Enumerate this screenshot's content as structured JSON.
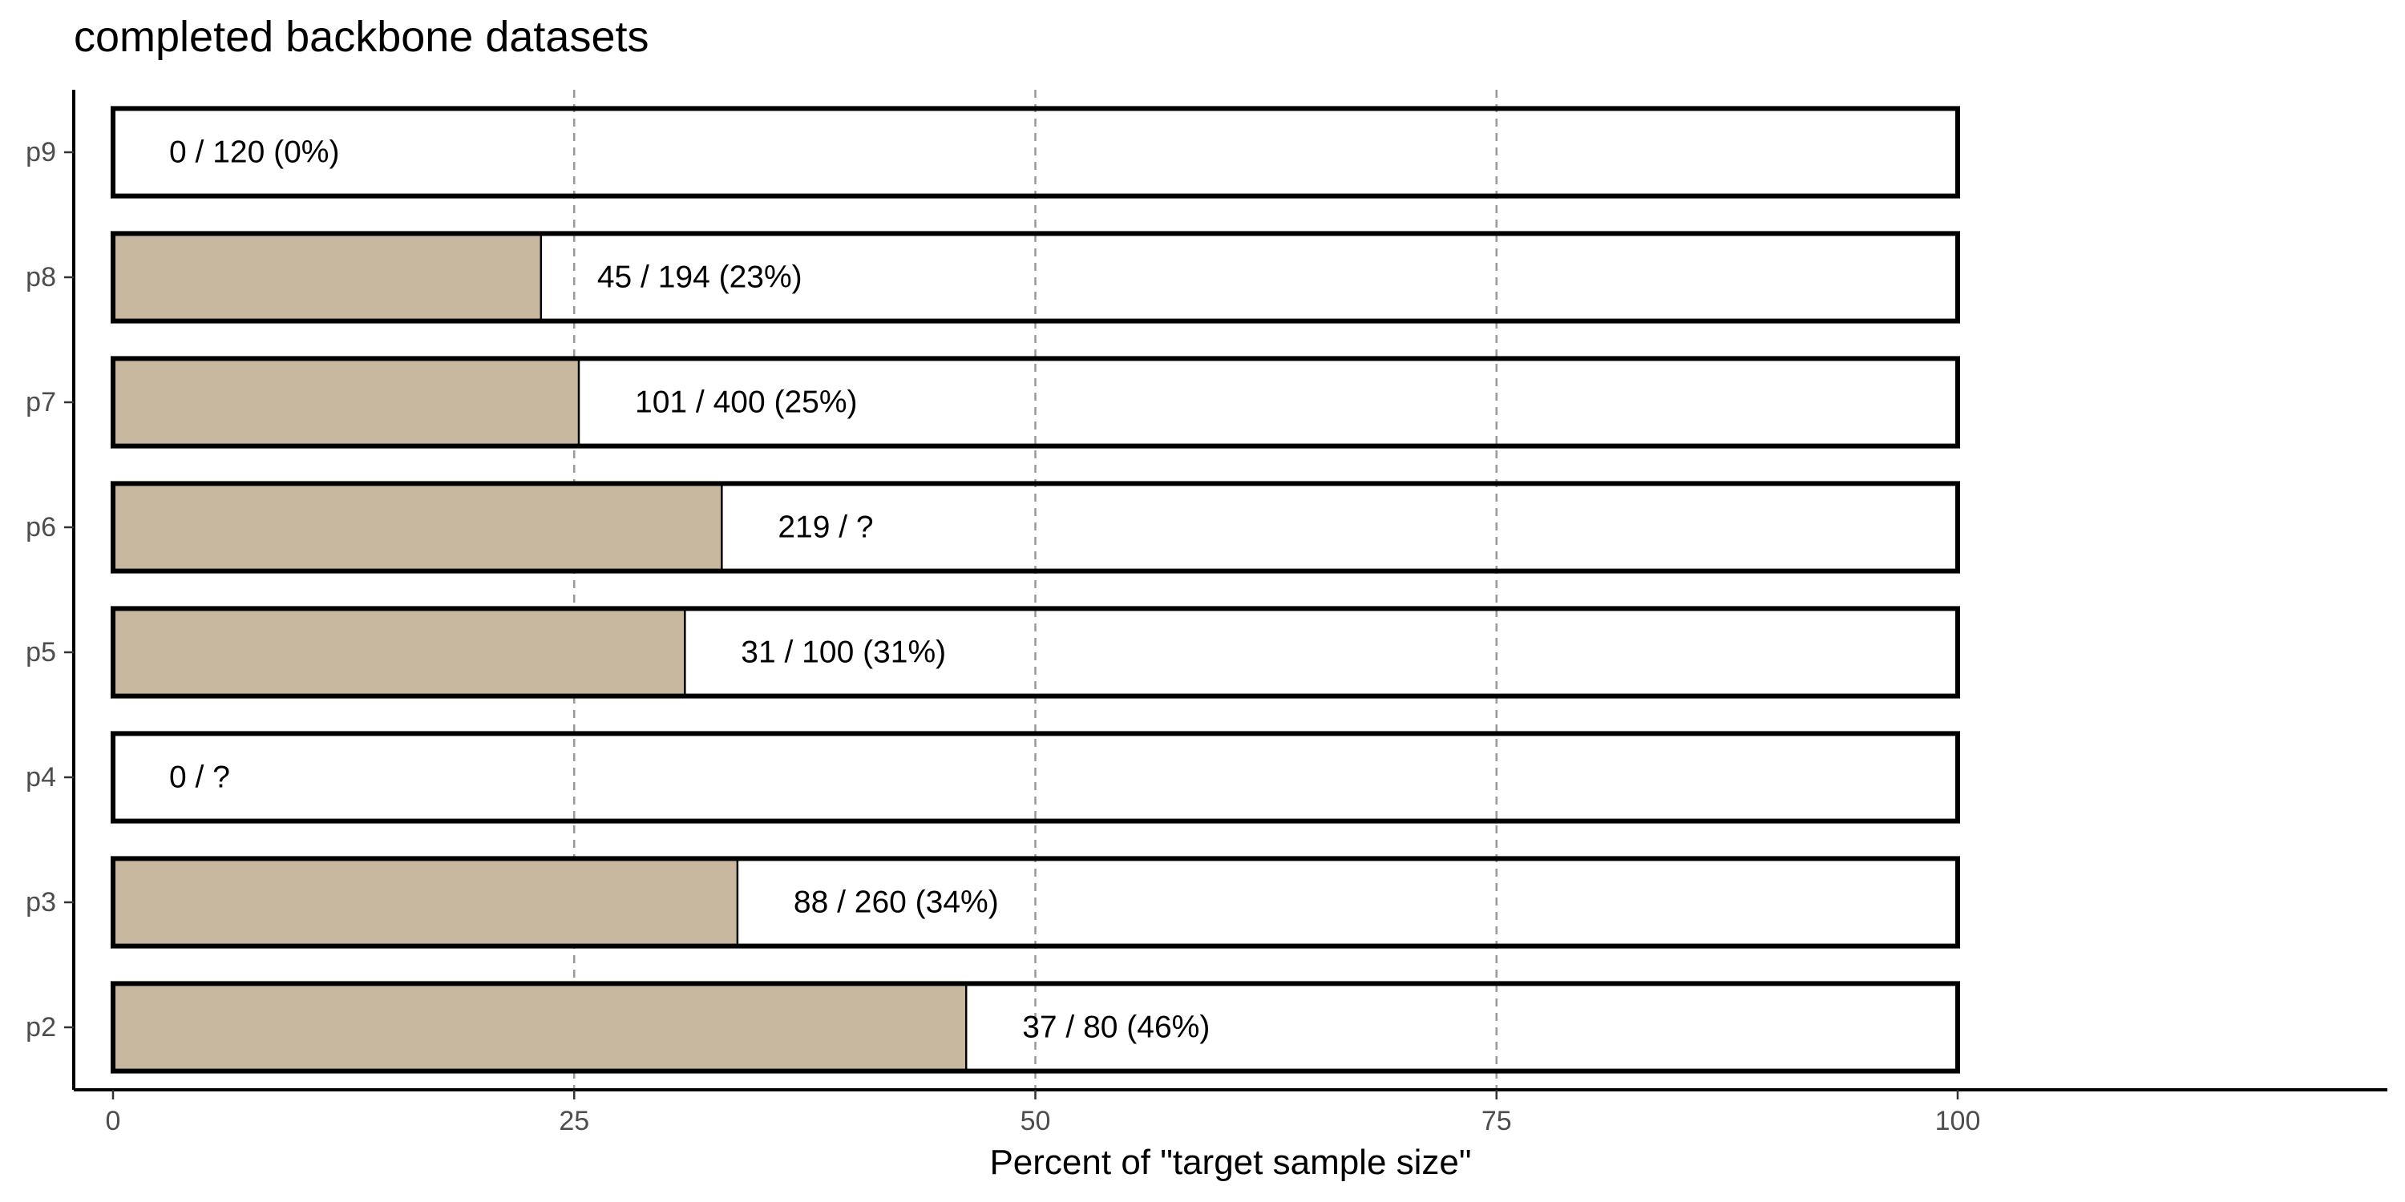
{
  "chart_data": {
    "type": "bar",
    "orientation": "horizontal",
    "title": "completed backbone datasets",
    "xlabel": "Percent of \"target sample size\"",
    "ylabel": "",
    "xlim": [
      0,
      123
    ],
    "x_ticks": [
      0,
      25,
      50,
      75,
      100
    ],
    "x_tick_labels": [
      "0",
      "25",
      "50",
      "75",
      "100"
    ],
    "categories": [
      "p9",
      "p8",
      "p7",
      "p6",
      "p5",
      "p4",
      "p3",
      "p2"
    ],
    "values": [
      0,
      23.2,
      25.25,
      33,
      31,
      0,
      33.85,
      46.25
    ],
    "target_outline_value": 100,
    "labels": [
      "0 / 120 (0%)",
      "45 / 194 (23%)",
      "101 / 400 (25%)",
      "219 / ?",
      "31 / 100 (31%)",
      "0 / ?",
      "88 / 260 (34%)",
      "37 / 80 (46%)"
    ],
    "gridlines": {
      "x_major": [
        25,
        50,
        75
      ],
      "style": "dashed"
    },
    "legend": "none",
    "colors": {
      "fill": "#c8b8a0",
      "outline": "#000000",
      "grid": "#999999",
      "tick_text": "#4d4d4d"
    }
  }
}
